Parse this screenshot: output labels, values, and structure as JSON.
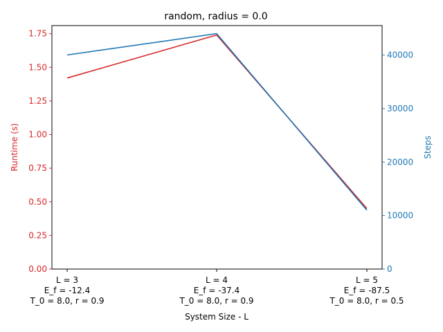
{
  "chart_data": {
    "type": "line",
    "title": "random, radius = 0.0",
    "xlabel": "System Size - L",
    "categories": [
      [
        "L = 3",
        "E_f = -12.4",
        "T_0 = 8.0, r = 0.9"
      ],
      [
        "L = 4",
        "E_f = -37.4",
        "T_0 = 8.0, r = 0.9"
      ],
      [
        "L = 5",
        "E_f = -87.5",
        "T_0 = 8.0, r = 0.5"
      ]
    ],
    "left_axis": {
      "label": "Runtime (s)",
      "color": "#d62728",
      "ylim": [
        0,
        1.81
      ],
      "ticks": [
        "0.00",
        "0.25",
        "0.50",
        "0.75",
        "1.00",
        "1.25",
        "1.50",
        "1.75"
      ]
    },
    "right_axis": {
      "label": "Steps",
      "color": "#1f77b4",
      "ylim": [
        0,
        45500
      ],
      "ticks": [
        "0",
        "10000",
        "20000",
        "30000",
        "40000"
      ]
    },
    "series": [
      {
        "axis": "left",
        "color": "#d62728",
        "values": [
          1.42,
          1.74,
          0.45
        ]
      },
      {
        "axis": "right",
        "color": "#1f77b4",
        "values": [
          40000,
          44000,
          11000
        ]
      }
    ],
    "grid": false,
    "legend": "none"
  }
}
